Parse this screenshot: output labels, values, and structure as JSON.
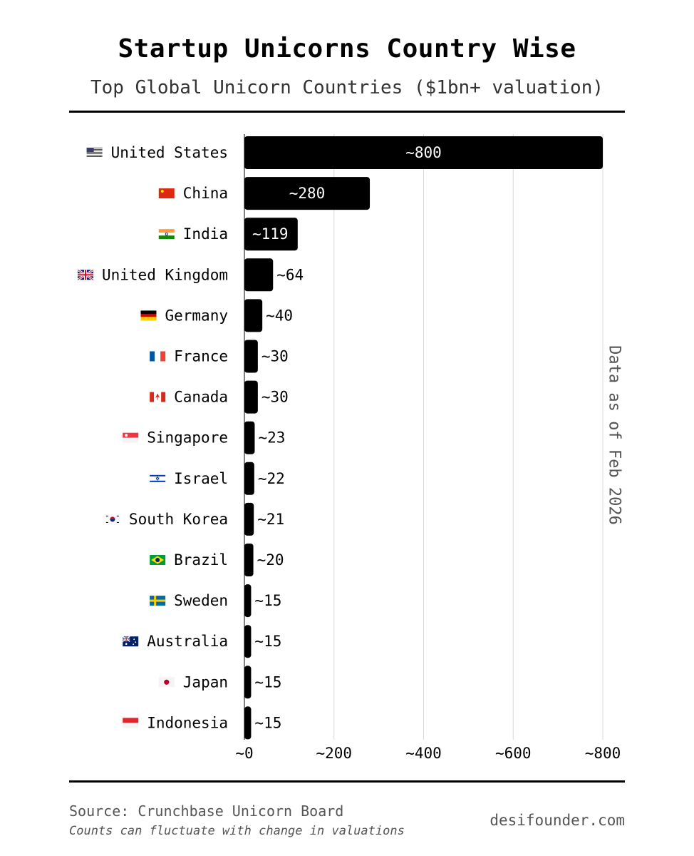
{
  "header": {
    "title": "Startup Unicorns Country Wise",
    "subtitle": "Top Global Unicorn Countries ($1bn+ valuation)"
  },
  "side_note": "Data as of Feb 2026",
  "footer": {
    "source": "Source: Crunchbase Unicorn Board",
    "note": "Counts can fluctuate with change in valuations",
    "site": "desifounder.com"
  },
  "colors": {
    "bar": "#000000",
    "grid": "#d9d9d9",
    "text": "#000000",
    "muted": "#555555"
  },
  "chart_data": {
    "type": "bar",
    "orientation": "horizontal",
    "categories": [
      "United States",
      "China",
      "India",
      "United Kingdom",
      "Germany",
      "France",
      "Canada",
      "Singapore",
      "Israel",
      "South Korea",
      "Brazil",
      "Sweden",
      "Australia",
      "Japan",
      "Indonesia"
    ],
    "flags": [
      "us-flag-icon",
      "cn-flag-icon",
      "in-flag-icon",
      "gb-flag-icon",
      "de-flag-icon",
      "fr-flag-icon",
      "ca-flag-icon",
      "sg-flag-icon",
      "il-flag-icon",
      "kr-flag-icon",
      "br-flag-icon",
      "se-flag-icon",
      "au-flag-icon",
      "jp-flag-icon",
      "id-flag-icon"
    ],
    "values": [
      800,
      280,
      119,
      64,
      40,
      30,
      30,
      23,
      22,
      21,
      20,
      15,
      15,
      15,
      15
    ],
    "value_labels": [
      "~800",
      "~280",
      "~119",
      "~64",
      "~40",
      "~30",
      "~30",
      "~23",
      "~22",
      "~21",
      "~20",
      "~15",
      "~15",
      "~15",
      "~15"
    ],
    "xlim": [
      0,
      800
    ],
    "xticks": [
      0,
      200,
      400,
      600,
      800
    ],
    "xtick_labels": [
      "~0",
      "~200",
      "~400",
      "~600",
      "~800"
    ],
    "grid": "vertical"
  }
}
